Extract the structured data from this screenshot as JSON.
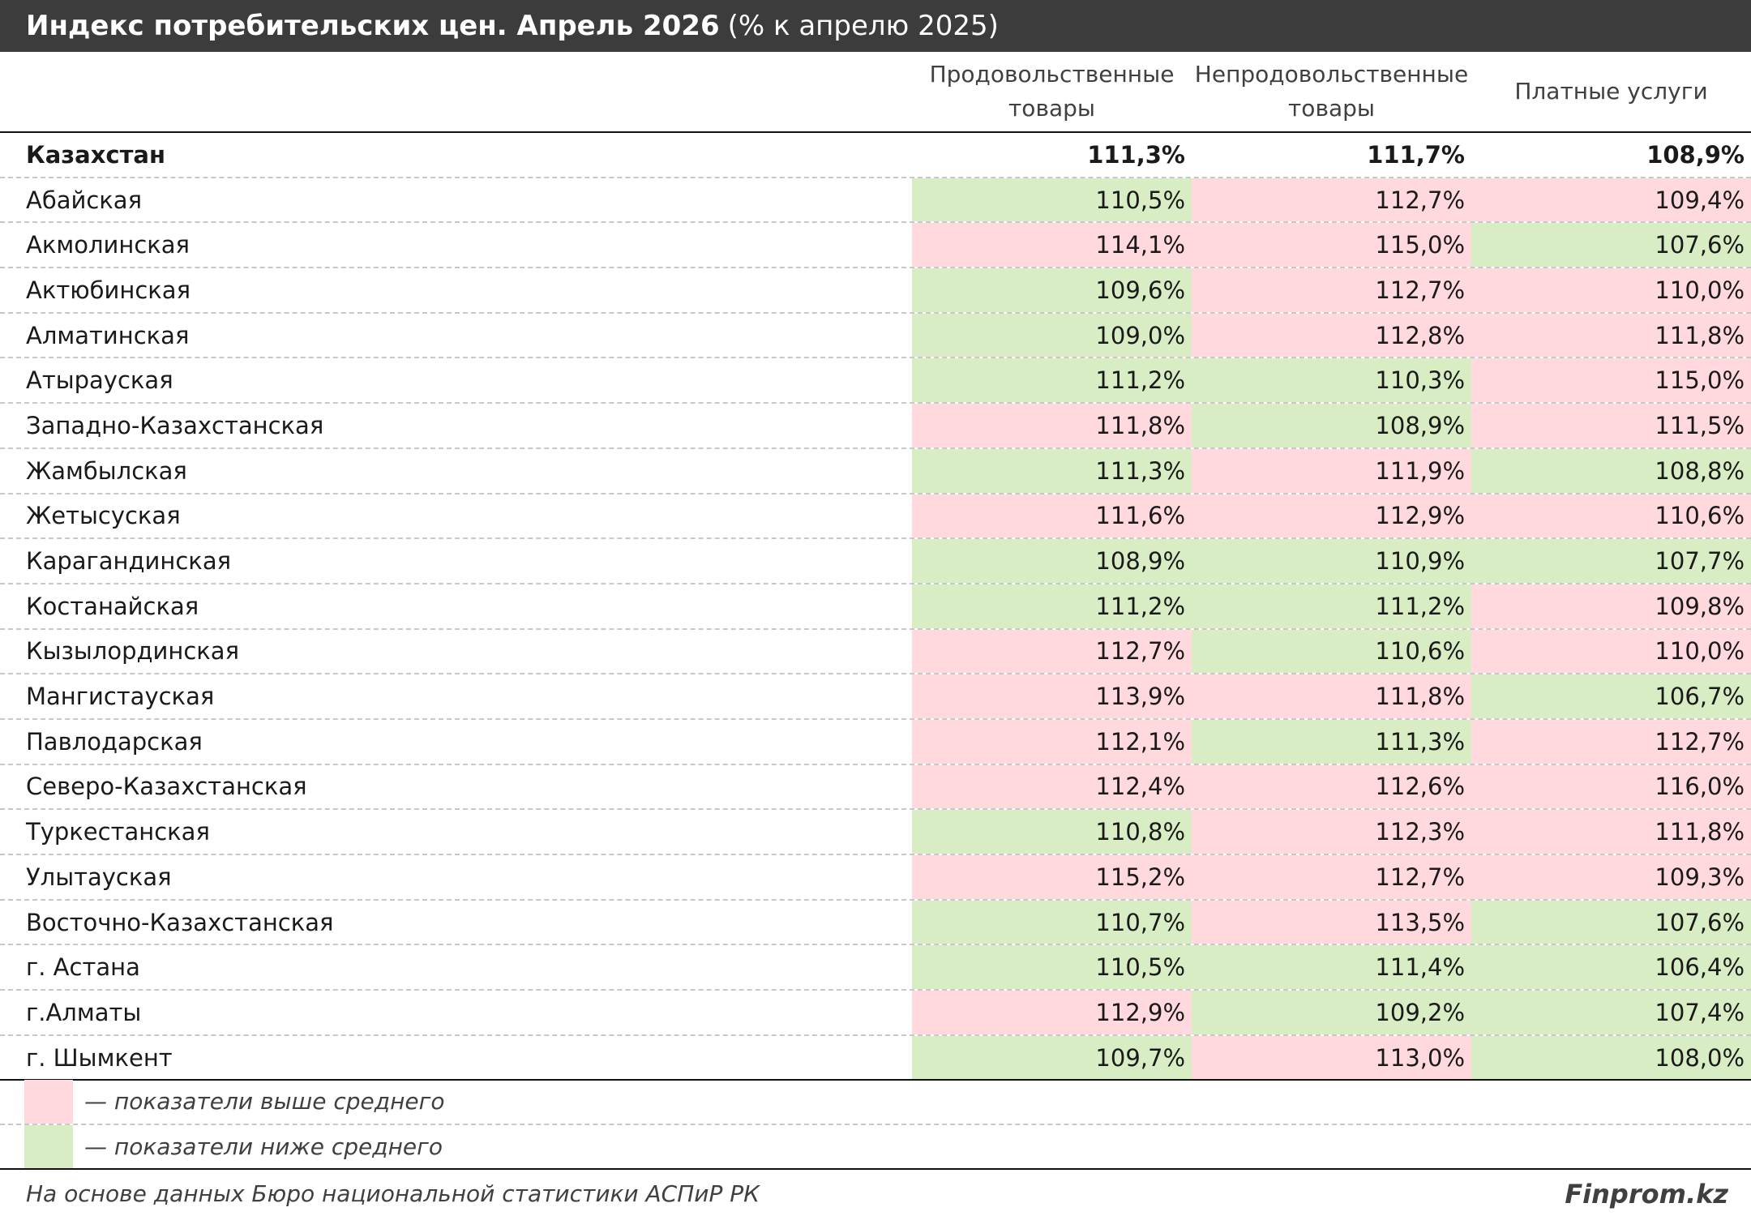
{
  "title": {
    "main": "Индекс потребительских цен. Апрель 2026",
    "sub": "(% к апрелю 2025)"
  },
  "colors": {
    "above_average": "#ffd9dd",
    "below_average": "#d8edc3",
    "title_bg": "#3c3c3c"
  },
  "chart_data": {
    "type": "table",
    "title": "Индекс потребительских цен. Апрель 2026 (% к апрелю 2025)",
    "columns": [
      [
        "Продовольственные",
        "товары"
      ],
      [
        "Непродовольственные",
        "товары"
      ],
      [
        "Платные услуги"
      ]
    ],
    "rows": [
      {
        "name": "Казахстан",
        "values": [
          "111,3%",
          "111,7%",
          "108,9%"
        ],
        "status": [
          "",
          "",
          ""
        ],
        "bold": true
      },
      {
        "name": "Абайская",
        "values": [
          "110,5%",
          "112,7%",
          "109,4%"
        ],
        "status": [
          "lo",
          "hi",
          "hi"
        ]
      },
      {
        "name": "Акмолинская",
        "values": [
          "114,1%",
          "115,0%",
          "107,6%"
        ],
        "status": [
          "hi",
          "hi",
          "lo"
        ]
      },
      {
        "name": "Актюбинская",
        "values": [
          "109,6%",
          "112,7%",
          "110,0%"
        ],
        "status": [
          "lo",
          "hi",
          "hi"
        ]
      },
      {
        "name": "Алматинская",
        "values": [
          "109,0%",
          "112,8%",
          "111,8%"
        ],
        "status": [
          "lo",
          "hi",
          "hi"
        ]
      },
      {
        "name": "Атырауская",
        "values": [
          "111,2%",
          "110,3%",
          "115,0%"
        ],
        "status": [
          "lo",
          "lo",
          "hi"
        ]
      },
      {
        "name": "Западно-Казахстанская",
        "values": [
          "111,8%",
          "108,9%",
          "111,5%"
        ],
        "status": [
          "hi",
          "lo",
          "hi"
        ]
      },
      {
        "name": "Жамбылская",
        "values": [
          "111,3%",
          "111,9%",
          "108,8%"
        ],
        "status": [
          "lo",
          "hi",
          "lo"
        ]
      },
      {
        "name": "Жетысуская",
        "values": [
          "111,6%",
          "112,9%",
          "110,6%"
        ],
        "status": [
          "hi",
          "hi",
          "hi"
        ]
      },
      {
        "name": "Карагандинская",
        "values": [
          "108,9%",
          "110,9%",
          "107,7%"
        ],
        "status": [
          "lo",
          "lo",
          "lo"
        ]
      },
      {
        "name": "Костанайская",
        "values": [
          "111,2%",
          "111,2%",
          "109,8%"
        ],
        "status": [
          "lo",
          "lo",
          "hi"
        ]
      },
      {
        "name": "Кызылординская",
        "values": [
          "112,7%",
          "110,6%",
          "110,0%"
        ],
        "status": [
          "hi",
          "lo",
          "hi"
        ]
      },
      {
        "name": "Мангистауская",
        "values": [
          "113,9%",
          "111,8%",
          "106,7%"
        ],
        "status": [
          "hi",
          "hi",
          "lo"
        ]
      },
      {
        "name": "Павлодарская",
        "values": [
          "112,1%",
          "111,3%",
          "112,7%"
        ],
        "status": [
          "hi",
          "lo",
          "hi"
        ]
      },
      {
        "name": "Северо-Казахстанская",
        "values": [
          "112,4%",
          "112,6%",
          "116,0%"
        ],
        "status": [
          "hi",
          "hi",
          "hi"
        ]
      },
      {
        "name": "Туркестанская",
        "values": [
          "110,8%",
          "112,3%",
          "111,8%"
        ],
        "status": [
          "lo",
          "hi",
          "hi"
        ]
      },
      {
        "name": "Улытауская",
        "values": [
          "115,2%",
          "112,7%",
          "109,3%"
        ],
        "status": [
          "hi",
          "hi",
          "hi"
        ]
      },
      {
        "name": "Восточно-Казахстанская",
        "values": [
          "110,7%",
          "113,5%",
          "107,6%"
        ],
        "status": [
          "lo",
          "hi",
          "lo"
        ]
      },
      {
        "name": "г. Астана",
        "values": [
          "110,5%",
          "111,4%",
          "106,4%"
        ],
        "status": [
          "lo",
          "lo",
          "lo"
        ]
      },
      {
        "name": "г.Алматы",
        "values": [
          "112,9%",
          "109,2%",
          "107,4%"
        ],
        "status": [
          "hi",
          "lo",
          "lo"
        ]
      },
      {
        "name": "г. Шымкент",
        "values": [
          "109,7%",
          "113,0%",
          "108,0%"
        ],
        "status": [
          "lo",
          "hi",
          "lo"
        ]
      }
    ]
  },
  "legend": {
    "above": "— показатели выше среднего",
    "below": "— показатели ниже среднего"
  },
  "footer": {
    "source": "На основе данных Бюро национальной статистики АСПиР РК",
    "brand": "Finprom.kz"
  }
}
